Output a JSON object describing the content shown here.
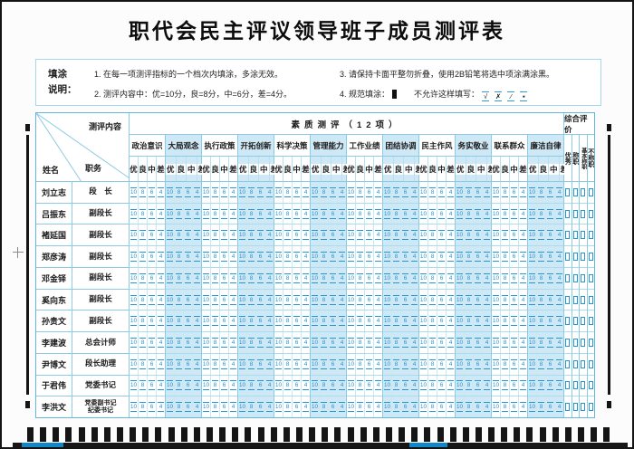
{
  "title": "职代会民主评议领导班子成员测评表",
  "instructions": {
    "label": "填涂\n说明：",
    "item1": "1. 在每一项测评指标的一个档次内填涂，多涂无效。",
    "item2": "2. 测评内容中：优=10分，良=8分，中=6分，差=4分。",
    "item3": "3. 请保持卡面平整勿折叠，使用2B铅笔将选中项涂满涂黑。",
    "item4_prefix": "4. 规范填涂：",
    "item4_suffix": "不允许这样填写：",
    "forbidden_marks": [
      "√",
      "✗",
      "∕",
      "▪"
    ]
  },
  "table": {
    "corner": {
      "top": "测评内容",
      "name": "姓名",
      "duty": "职务"
    },
    "quality_header": "素质测评（12项）",
    "overall_header": "综合评价",
    "groups": [
      "政治意识",
      "大局观念",
      "执行政策",
      "开拓创新",
      "科学决策",
      "管理能力",
      "工作业绩",
      "团结协调",
      "民主作风",
      "务实敬业",
      "联系群众",
      "廉洁自律"
    ],
    "grades": [
      "优",
      "良",
      "中",
      "差"
    ],
    "scores": [
      "10",
      "8",
      "6",
      "4"
    ],
    "overall_options": [
      "优秀",
      "称职",
      "基本称职",
      "不称职"
    ],
    "rows": [
      {
        "name": "刘立志",
        "duty": "段　长"
      },
      {
        "name": "吕振东",
        "duty": "副段长"
      },
      {
        "name": "褚延国",
        "duty": "副段长"
      },
      {
        "name": "郑彦涛",
        "duty": "副段长"
      },
      {
        "name": "邓金铎",
        "duty": "副段长"
      },
      {
        "name": "奚向东",
        "duty": "副段长"
      },
      {
        "name": "孙贵文",
        "duty": "副段长"
      },
      {
        "name": "李建波",
        "duty": "总会计师"
      },
      {
        "name": "尹博文",
        "duty": "段长助理"
      },
      {
        "name": "于君伟",
        "duty": "党委书记"
      },
      {
        "name": "李洪文",
        "duty": "党委副书记",
        "duty2": "纪委书记"
      }
    ]
  },
  "colors": {
    "band_blue": "#cfe8f6",
    "grid_blue": "#8ccbe5",
    "bubble_blue": "#2795cf",
    "mark_black": "#151515",
    "strip_blue": "#1287c8"
  },
  "timing_marks_count": 46
}
